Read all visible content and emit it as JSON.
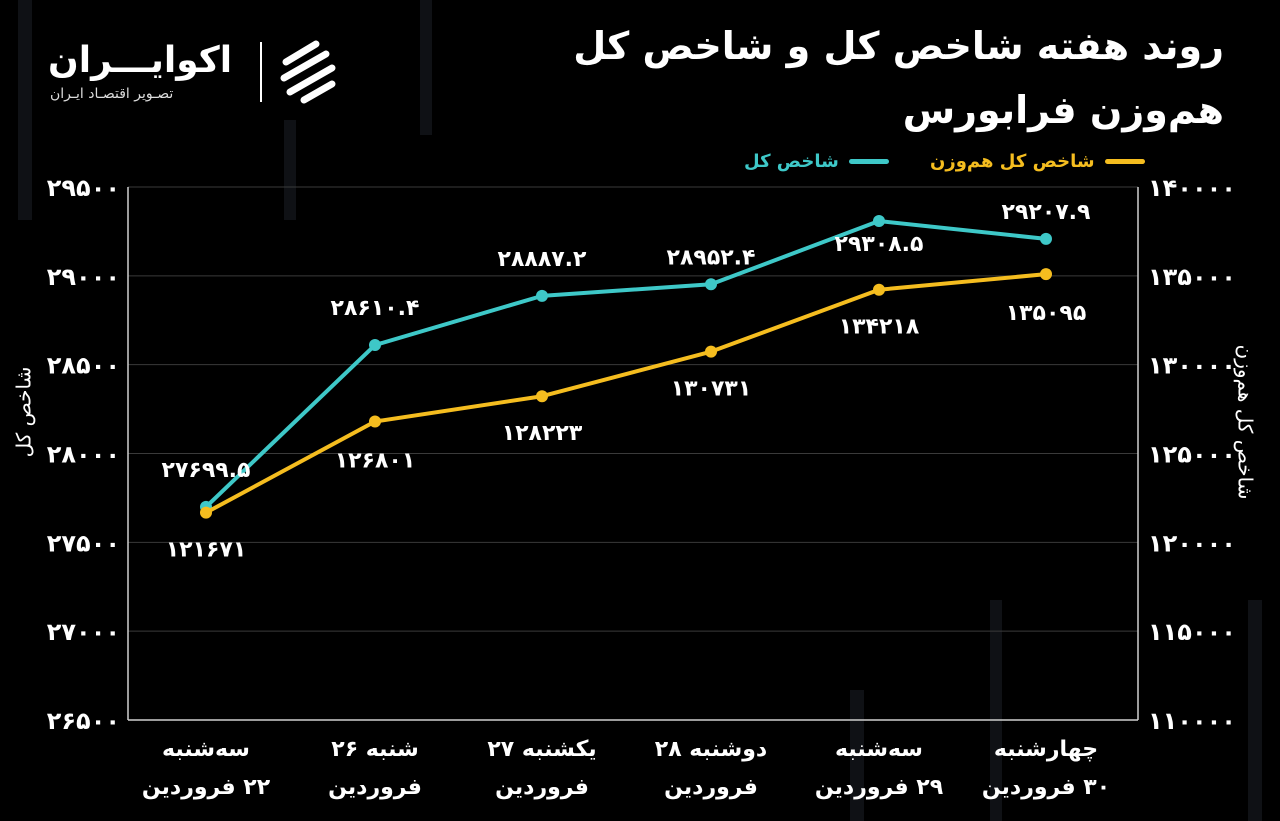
{
  "header": {
    "title_line1": "روند هفته شاخص کل و شاخص کل",
    "title_line2": "هم‌وزن فرابورس"
  },
  "logo": {
    "name": "اکوایـــران",
    "tagline": "تصـویر اقتصـاد ایـران"
  },
  "colors": {
    "main": "#3ec8c8",
    "equal": "#f5bd1f",
    "grid": "#3a3a3a",
    "axis": "#cfcfcf"
  },
  "chart_data": {
    "type": "line",
    "categories": [
      [
        "سه‌شنبه",
        "۲۲ فروردین"
      ],
      [
        "شنبه ۲۶",
        "فروردین"
      ],
      [
        "یکشنبه ۲۷",
        "فروردین"
      ],
      [
        "دوشنبه ۲۸",
        "فروردین"
      ],
      [
        "سه‌شنبه",
        "۲۹ فروردین"
      ],
      [
        "چهارشنبه",
        "۳۰ فروردین"
      ]
    ],
    "series": [
      {
        "name": "شاخص کل",
        "axis": "left",
        "color": "#3ec8c8",
        "values": [
          27699.5,
          28610.4,
          28887.2,
          28952.4,
          29308.5,
          29207.9
        ],
        "labels": [
          "۲۷۶۹۹.۵",
          "۲۸۶۱۰.۴",
          "۲۸۸۸۷.۲",
          "۲۸۹۵۲.۴",
          "۲۹۳۰۸.۵",
          "۲۹۲۰۷.۹"
        ]
      },
      {
        "name": "شاخص کل هم‌وزن",
        "axis": "right",
        "color": "#f5bd1f",
        "values": [
          121671,
          126801,
          128223,
          130731,
          134218,
          135095
        ],
        "labels": [
          "۱۲۱۶۷۱",
          "۱۲۶۸۰۱",
          "۱۲۸۲۲۳",
          "۱۳۰۷۳۱",
          "۱۳۴۲۱۸",
          "۱۳۵۰۹۵"
        ]
      }
    ],
    "ylabel_left": "شاخص کل",
    "ylabel_right": "شاخص کل هم‌وزن",
    "ylim_left": [
      26500,
      29500
    ],
    "ylim_right": [
      110000,
      140000
    ],
    "yticks_left": [
      {
        "v": 29500,
        "t": "۲۹۵۰۰"
      },
      {
        "v": 29000,
        "t": "۲۹۰۰۰"
      },
      {
        "v": 28500,
        "t": "۲۸۵۰۰"
      },
      {
        "v": 28000,
        "t": "۲۸۰۰۰"
      },
      {
        "v": 27500,
        "t": "۲۷۵۰۰"
      },
      {
        "v": 27000,
        "t": "۲۷۰۰۰"
      },
      {
        "v": 26500,
        "t": "۲۶۵۰۰"
      }
    ],
    "yticks_right": [
      {
        "v": 140000,
        "t": "۱۴۰۰۰۰"
      },
      {
        "v": 135000,
        "t": "۱۳۵۰۰۰"
      },
      {
        "v": 130000,
        "t": "۱۳۰۰۰۰"
      },
      {
        "v": 125000,
        "t": "۱۲۵۰۰۰"
      },
      {
        "v": 120000,
        "t": "۱۲۰۰۰۰"
      },
      {
        "v": 115000,
        "t": "۱۱۵۰۰۰"
      },
      {
        "v": 110000,
        "t": "۱۱۰۰۰۰"
      }
    ],
    "grid": true,
    "legend": "top"
  }
}
